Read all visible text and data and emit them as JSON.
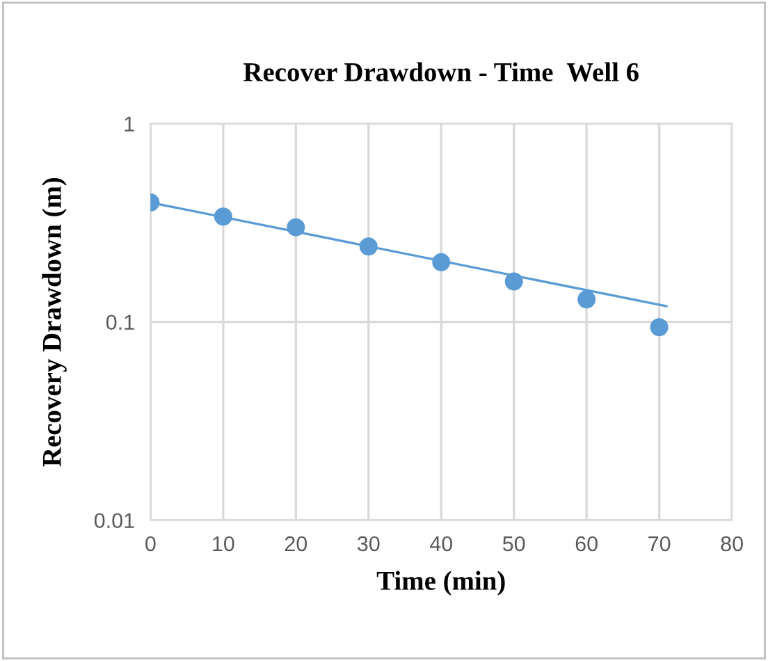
{
  "chart_data": {
    "type": "scatter",
    "title": "Recover Drawdown - Time  Well 6",
    "xlabel": "Time (min)",
    "ylabel": "Recovery Drawdown (m)",
    "x": [
      0,
      10,
      20,
      30,
      40,
      50,
      60,
      70
    ],
    "series": [
      {
        "color": "#5b9bd5",
        "marker": "circle",
        "values": [
          0.4,
          0.34,
          0.3,
          0.24,
          0.2,
          0.16,
          0.13,
          0.094
        ]
      },
      {
        "type": "line",
        "marker": "none",
        "color": "#5b9bd5",
        "x": [
          0,
          71
        ],
        "values": [
          0.4,
          0.12
        ]
      }
    ],
    "log": "y",
    "xlim": [
      0,
      80
    ],
    "xticks": [
      0,
      10,
      20,
      30,
      40,
      50,
      60,
      70,
      80
    ],
    "ylim": [
      0.01,
      1
    ],
    "yticks": [
      0.01,
      0.1,
      1
    ],
    "grid": true
  }
}
